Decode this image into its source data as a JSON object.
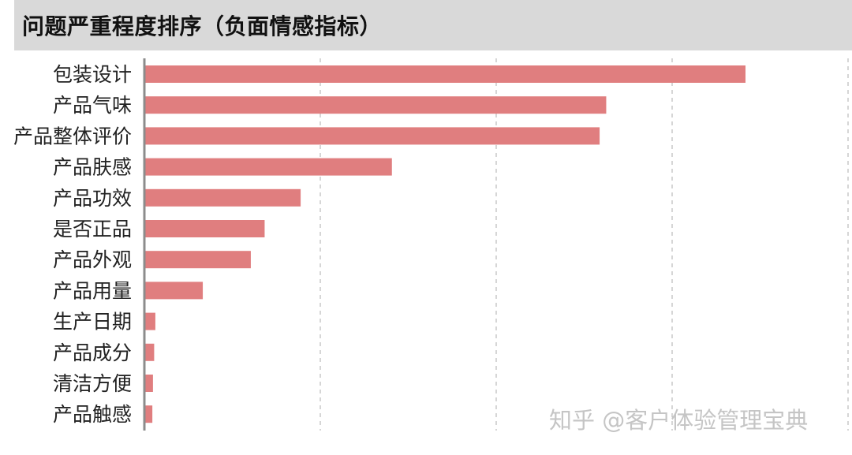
{
  "title": "问题严重程度排序（负面情感指标）",
  "watermark": "知乎 @客户体验管理宝典",
  "colors": {
    "bar": "#e07e7f",
    "axis": "#8c8c8c",
    "grid": "#c8c8c8",
    "title_bg": "#d9d9d9",
    "label": "#222222"
  },
  "chart_data": {
    "type": "bar",
    "orientation": "horizontal",
    "title": "问题严重程度排序（负面情感指标）",
    "xlabel": "",
    "ylabel": "",
    "xlim": [
      0,
      100
    ],
    "grid": true,
    "legend": "none",
    "categories": [
      "包装设计",
      "产品气味",
      "产品整体评价",
      "产品肤感",
      "产品功效",
      "是否正品",
      "产品外观",
      "产品用量",
      "生产日期",
      "产品成分",
      "清洁方便",
      "产品触感"
    ],
    "values": [
      100,
      76.8,
      75.7,
      41.1,
      25.9,
      19.9,
      17.6,
      9.6,
      1.7,
      1.5,
      1.3,
      1.2
    ]
  }
}
